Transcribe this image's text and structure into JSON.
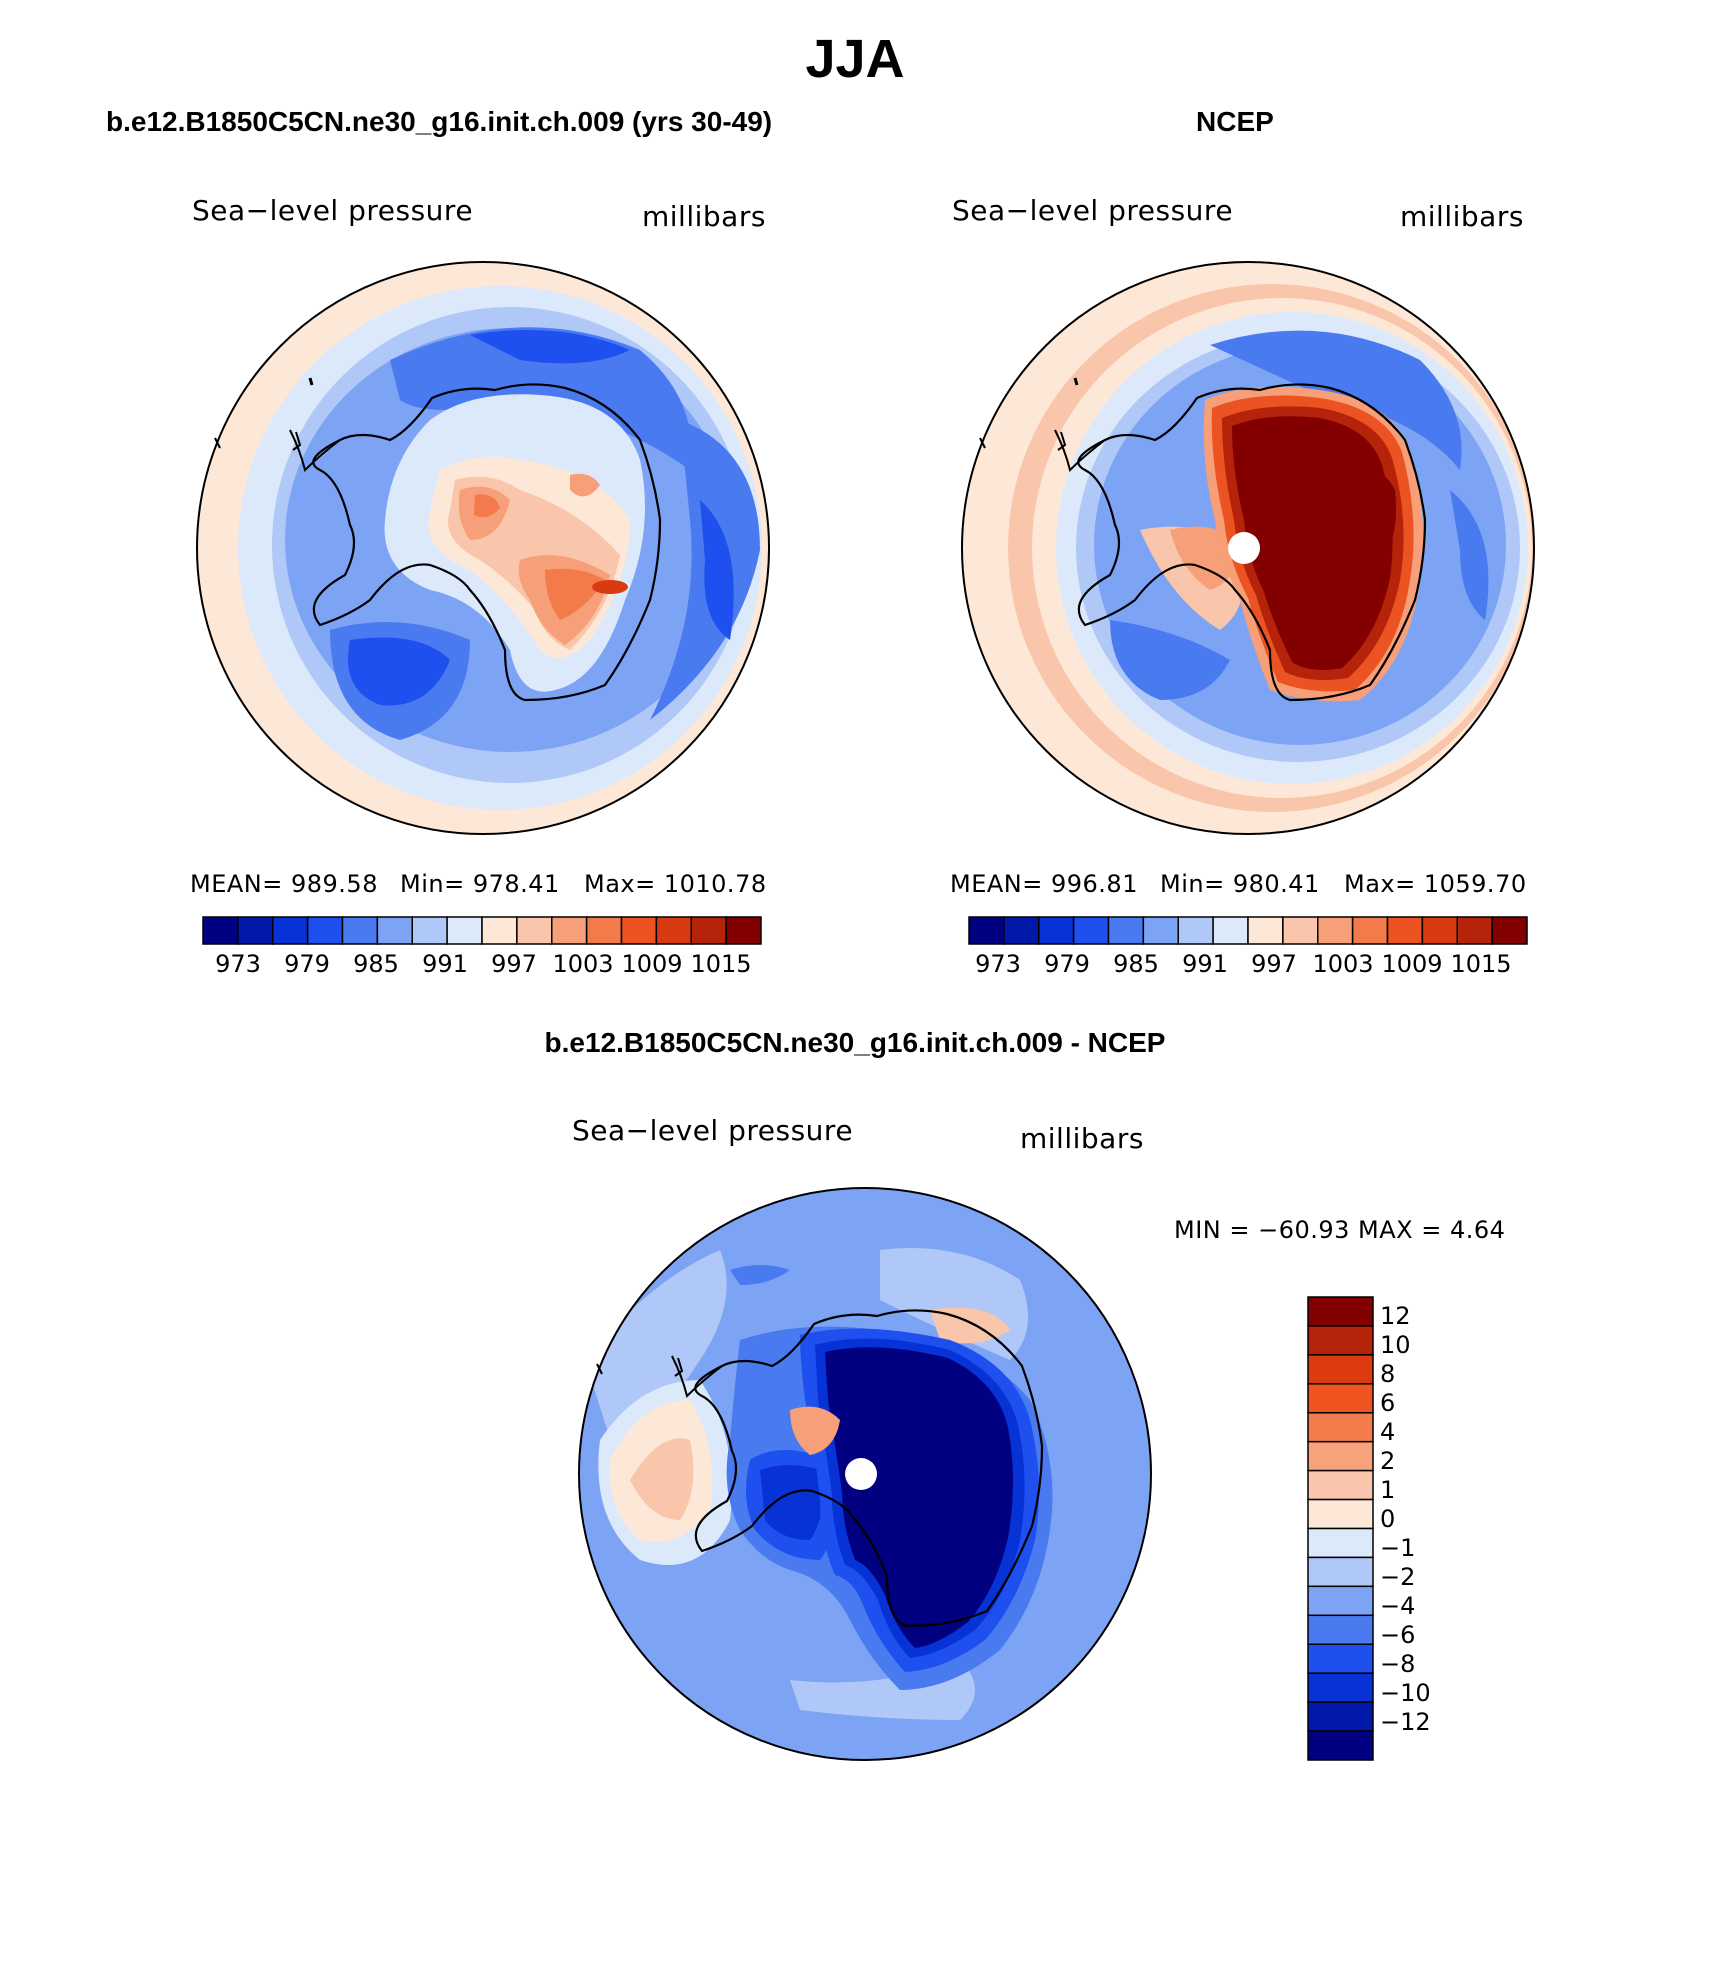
{
  "title": "JJA",
  "panels": [
    {
      "id": "model",
      "title": "b.e12.B1850C5CN.ne30_g16.init.ch.009 (yrs 30-49)",
      "variable": "Sea−level pressure",
      "units": "millibars",
      "stats": {
        "mean": "MEAN=  989.58",
        "min": "Min=  978.41",
        "max": "Max=  1010.78"
      }
    },
    {
      "id": "obs",
      "title": "NCEP",
      "variable": "Sea−level pressure",
      "units": "millibars",
      "stats": {
        "mean": "MEAN=  996.81",
        "min": "Min=  980.41",
        "max": "Max=  1059.70"
      }
    },
    {
      "id": "diff",
      "title": "b.e12.B1850C5CN.ne30_g16.init.ch.009 - NCEP",
      "variable": "Sea−level pressure",
      "units": "millibars",
      "minmax": "MIN  =  −60.93  MAX  =      4.64"
    }
  ],
  "colorbar_abs": {
    "tick_labels": [
      "973",
      "979",
      "985",
      "991",
      "997",
      "1003",
      "1009",
      "1015"
    ],
    "colors": [
      "#000080",
      "#0019a8",
      "#0632d6",
      "#1e50ef",
      "#4a7af0",
      "#7da4f4",
      "#b0c8f8",
      "#dce9fb",
      "#fde8d8",
      "#f9c5ab",
      "#f69f79",
      "#f27a4b",
      "#eb5323",
      "#d83a12",
      "#b4230a",
      "#830000"
    ]
  },
  "colorbar_diff": {
    "tick_labels": [
      "12",
      "10",
      "8",
      "6",
      "4",
      "2",
      "1",
      "0",
      "−1",
      "−2",
      "−4",
      "−6",
      "−8",
      "−10",
      "−12"
    ],
    "colors": [
      "#830000",
      "#b4230a",
      "#dc3b10",
      "#f0551f",
      "#f47b4c",
      "#f6a27d",
      "#f9c6ad",
      "#fde8d8",
      "#dce9fb",
      "#b0c8f8",
      "#7da4f4",
      "#4a7af0",
      "#1e50ef",
      "#0632d6",
      "#0019a8",
      "#000080"
    ]
  }
}
